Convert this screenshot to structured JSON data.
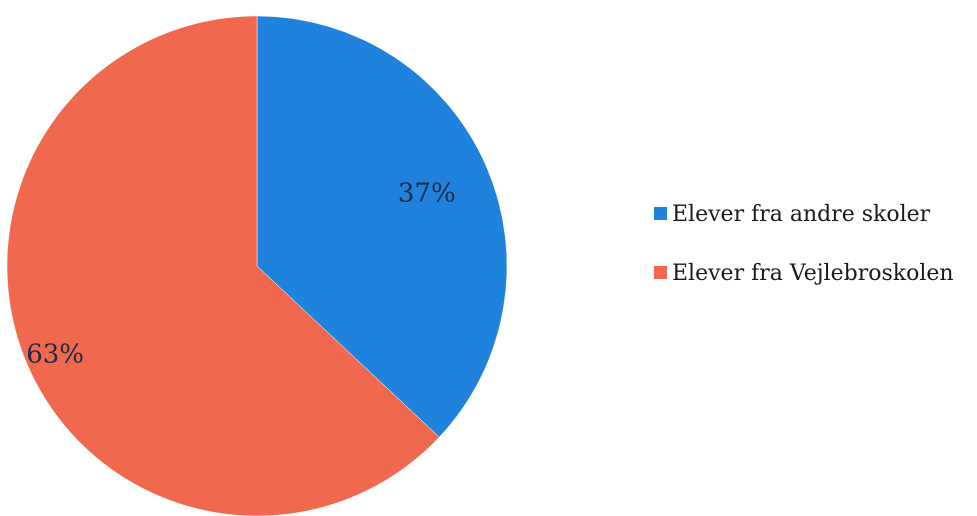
{
  "chart_data": {
    "type": "pie",
    "categories": [
      "Elever fra andre skoler",
      "Elever fra Vejlebroskolen"
    ],
    "values": [
      37,
      63
    ],
    "value_labels": [
      "37%",
      "63%"
    ],
    "colors": [
      "#1f82dc",
      "#f0694e"
    ],
    "legend_placement": "right",
    "start_angle": "12 o'clock",
    "direction": "clockwise"
  }
}
